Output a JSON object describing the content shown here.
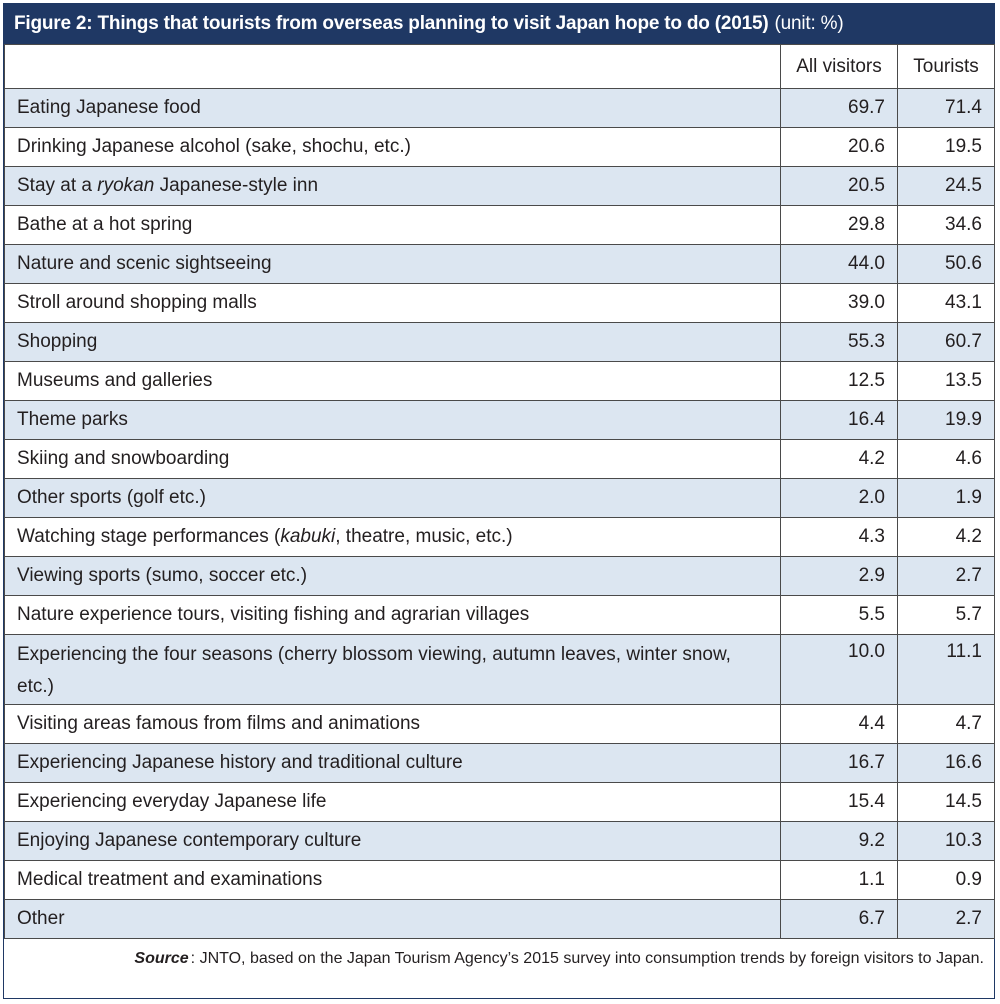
{
  "chart_data": {
    "type": "table",
    "title": "Figure 2: Things that tourists from overseas planning to visit Japan hope to do (2015)",
    "unit": "(unit: %)",
    "columns": [
      "All visitors",
      "Tourists"
    ],
    "rows": [
      {
        "label": "Eating Japanese food",
        "all_visitors": "69.7",
        "tourists": "71.4"
      },
      {
        "label": "Drinking Japanese alcohol (sake, shochu, etc.)",
        "all_visitors": "20.6",
        "tourists": "19.5"
      },
      {
        "label_pre": "Stay at a ",
        "label_em": "ryokan",
        "label_post": " Japanese-style inn",
        "all_visitors": "20.5",
        "tourists": "24.5"
      },
      {
        "label": "Bathe at a hot spring",
        "all_visitors": "29.8",
        "tourists": "34.6"
      },
      {
        "label": "Nature and scenic sightseeing",
        "all_visitors": "44.0",
        "tourists": "50.6"
      },
      {
        "label": "Stroll around shopping malls",
        "all_visitors": "39.0",
        "tourists": "43.1"
      },
      {
        "label": "Shopping",
        "all_visitors": "55.3",
        "tourists": "60.7"
      },
      {
        "label": "Museums and galleries",
        "all_visitors": "12.5",
        "tourists": "13.5"
      },
      {
        "label": "Theme parks",
        "all_visitors": "16.4",
        "tourists": "19.9"
      },
      {
        "label": "Skiing and snowboarding",
        "all_visitors": "4.2",
        "tourists": "4.6"
      },
      {
        "label": "Other sports (golf etc.)",
        "all_visitors": "2.0",
        "tourists": "1.9"
      },
      {
        "label_pre": "Watching stage performances (",
        "label_em": "kabuki",
        "label_post": ", theatre, music, etc.)",
        "all_visitors": "4.3",
        "tourists": "4.2"
      },
      {
        "label": "Viewing sports (sumo, soccer etc.)",
        "all_visitors": "2.9",
        "tourists": "2.7"
      },
      {
        "label": "Nature experience tours, visiting fishing and agrarian villages",
        "all_visitors": "5.5",
        "tourists": "5.7"
      },
      {
        "label": "Experiencing the four seasons (cherry blossom viewing, autumn leaves, winter snow, etc.)",
        "all_visitors": "10.0",
        "tourists": "11.1"
      },
      {
        "label": "Visiting areas famous from films and animations",
        "all_visitors": "4.4",
        "tourists": "4.7"
      },
      {
        "label": "Experiencing Japanese history and traditional culture",
        "all_visitors": "16.7",
        "tourists": "16.6"
      },
      {
        "label": "Experiencing everyday Japanese life",
        "all_visitors": "15.4",
        "tourists": "14.5"
      },
      {
        "label": "Enjoying Japanese contemporary culture",
        "all_visitors": "9.2",
        "tourists": "10.3"
      },
      {
        "label": "Medical treatment and examinations",
        "all_visitors": "1.1",
        "tourists": "0.9"
      },
      {
        "label": "Other",
        "all_visitors": "6.7",
        "tourists": "2.7"
      }
    ],
    "source_label": "Source",
    "source_text": ": JNTO, based on the Japan Tourism Agency’s 2015 survey into consumption trends by foreign visitors to Japan."
  },
  "colors": {
    "header_bg": "#1f3864",
    "shaded_row": "#dce6f1",
    "border": "#4a4a4a"
  }
}
